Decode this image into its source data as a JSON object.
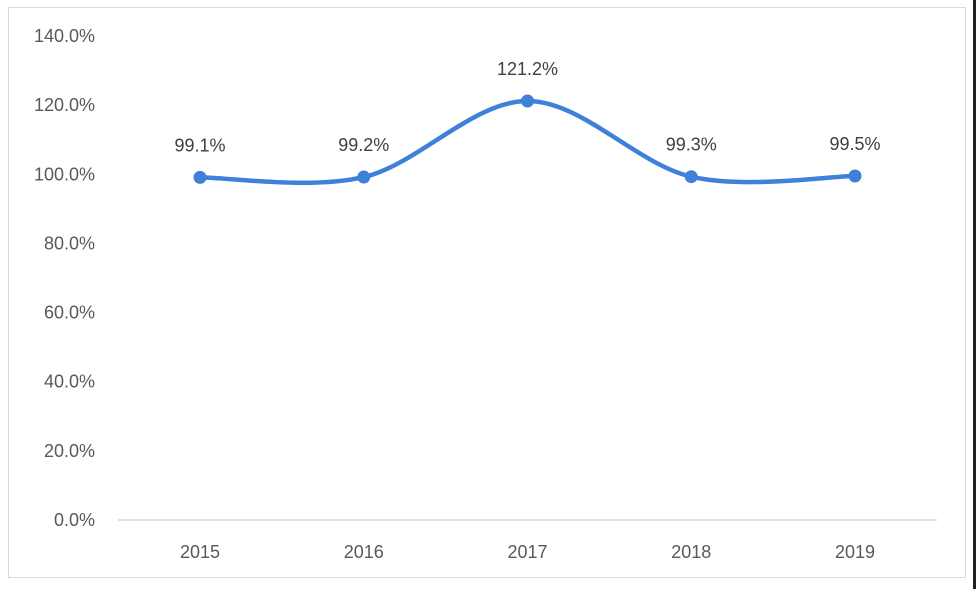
{
  "chart_data": {
    "type": "line",
    "categories": [
      "2015",
      "2016",
      "2017",
      "2018",
      "2019"
    ],
    "values": [
      99.1,
      99.2,
      121.2,
      99.3,
      99.5
    ],
    "data_labels": [
      "99.1%",
      "99.2%",
      "121.2%",
      "99.3%",
      "99.5%"
    ],
    "ylim": [
      0,
      140
    ],
    "yticks": [
      0,
      20,
      40,
      60,
      80,
      100,
      120,
      140
    ],
    "ytick_labels": [
      "0.0%",
      "20.0%",
      "40.0%",
      "60.0%",
      "80.0%",
      "100.0%",
      "120.0%",
      "140.0%"
    ],
    "title": "",
    "xlabel": "",
    "ylabel": "",
    "smooth": true,
    "grid": false,
    "line_color": "#3f80d8"
  }
}
